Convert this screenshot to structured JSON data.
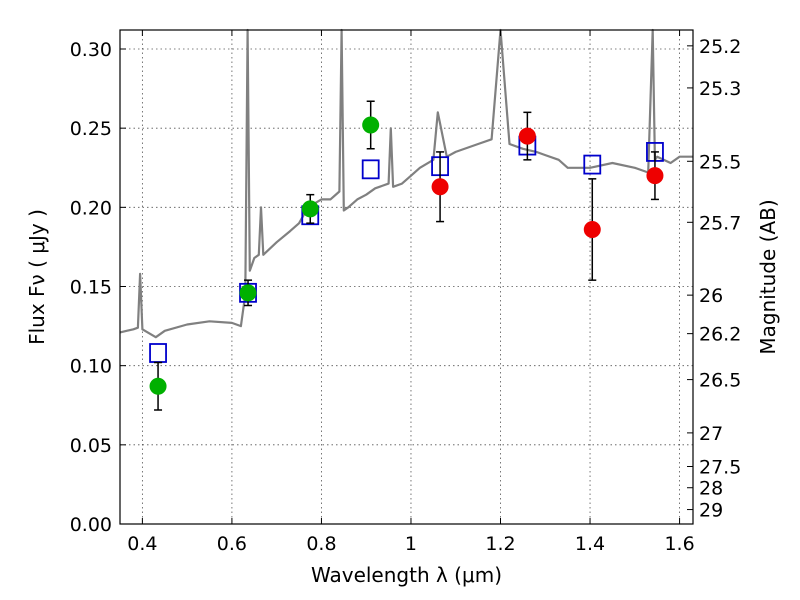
{
  "chart_data": {
    "type": "scatter",
    "xlabel": "Wavelength  λ (μm)",
    "ylabel": "Flux  Fν ( μJy )",
    "y2label": "Magnitude (AB)",
    "xlim": [
      0.35,
      1.63
    ],
    "ylim": [
      0.0,
      0.312
    ],
    "grid": true,
    "x_ticks": [
      "0.4",
      "0.6",
      "0.8",
      "1",
      "1.2",
      "1.4",
      "1.6"
    ],
    "y_ticks": [
      "0.00",
      "0.05",
      "0.10",
      "0.15",
      "0.20",
      "0.25",
      "0.30"
    ],
    "y2_ticks": [
      "25.2",
      "25.3",
      "25.5",
      "25.7",
      "26",
      "26.2",
      "26.5",
      "27",
      "27.5",
      "28",
      "29"
    ],
    "colors": {
      "spectrum": "#808080",
      "model": "#0000cc",
      "obs_green": "#00b000",
      "obs_red": "#ee0000",
      "errorbar": "#000000"
    },
    "series": [
      {
        "type": "line",
        "color": "#808080",
        "x": [
          0.35,
          0.38,
          0.39,
          0.395,
          0.4,
          0.43,
          0.45,
          0.5,
          0.55,
          0.6,
          0.62,
          0.63,
          0.635,
          0.64,
          0.65,
          0.66,
          0.665,
          0.67,
          0.7,
          0.73,
          0.75,
          0.77,
          0.8,
          0.82,
          0.84,
          0.845,
          0.85,
          0.86,
          0.88,
          0.9,
          0.92,
          0.95,
          0.955,
          0.96,
          0.98,
          1.0,
          1.02,
          1.05,
          1.06,
          1.08,
          1.1,
          1.15,
          1.18,
          1.2,
          1.22,
          1.25,
          1.28,
          1.3,
          1.33,
          1.35,
          1.4,
          1.45,
          1.5,
          1.53,
          1.54,
          1.545,
          1.55,
          1.58,
          1.6,
          1.63
        ],
        "y": [
          0.121,
          0.123,
          0.124,
          0.158,
          0.123,
          0.118,
          0.122,
          0.126,
          0.128,
          0.127,
          0.125,
          0.145,
          0.312,
          0.16,
          0.168,
          0.17,
          0.2,
          0.17,
          0.178,
          0.185,
          0.19,
          0.2,
          0.205,
          0.205,
          0.21,
          0.312,
          0.198,
          0.2,
          0.205,
          0.208,
          0.212,
          0.215,
          0.25,
          0.213,
          0.215,
          0.22,
          0.225,
          0.23,
          0.26,
          0.232,
          0.235,
          0.24,
          0.243,
          0.312,
          0.24,
          0.237,
          0.235,
          0.233,
          0.23,
          0.225,
          0.225,
          0.228,
          0.225,
          0.222,
          0.312,
          0.23,
          0.232,
          0.228,
          0.232,
          0.232
        ]
      },
      {
        "type": "model",
        "marker": "open-square",
        "color": "#0000cc",
        "x": [
          0.435,
          0.636,
          0.775,
          0.91,
          1.065,
          1.26,
          1.405,
          1.545
        ],
        "y": [
          0.108,
          0.146,
          0.195,
          0.224,
          0.226,
          0.239,
          0.227,
          0.235
        ]
      },
      {
        "type": "observed",
        "marker": "filled-circle",
        "x": [
          0.435,
          0.636,
          0.775,
          0.91,
          1.065,
          1.26,
          1.405,
          1.545
        ],
        "y": [
          0.087,
          0.146,
          0.199,
          0.252,
          0.213,
          0.245,
          0.186,
          0.22
        ],
        "yerr": [
          0.015,
          0.008,
          0.009,
          0.015,
          0.022,
          0.015,
          0.032,
          0.015
        ],
        "colors": [
          "#00b000",
          "#00b000",
          "#00b000",
          "#00b000",
          "#ee0000",
          "#ee0000",
          "#ee0000",
          "#ee0000"
        ]
      }
    ]
  }
}
